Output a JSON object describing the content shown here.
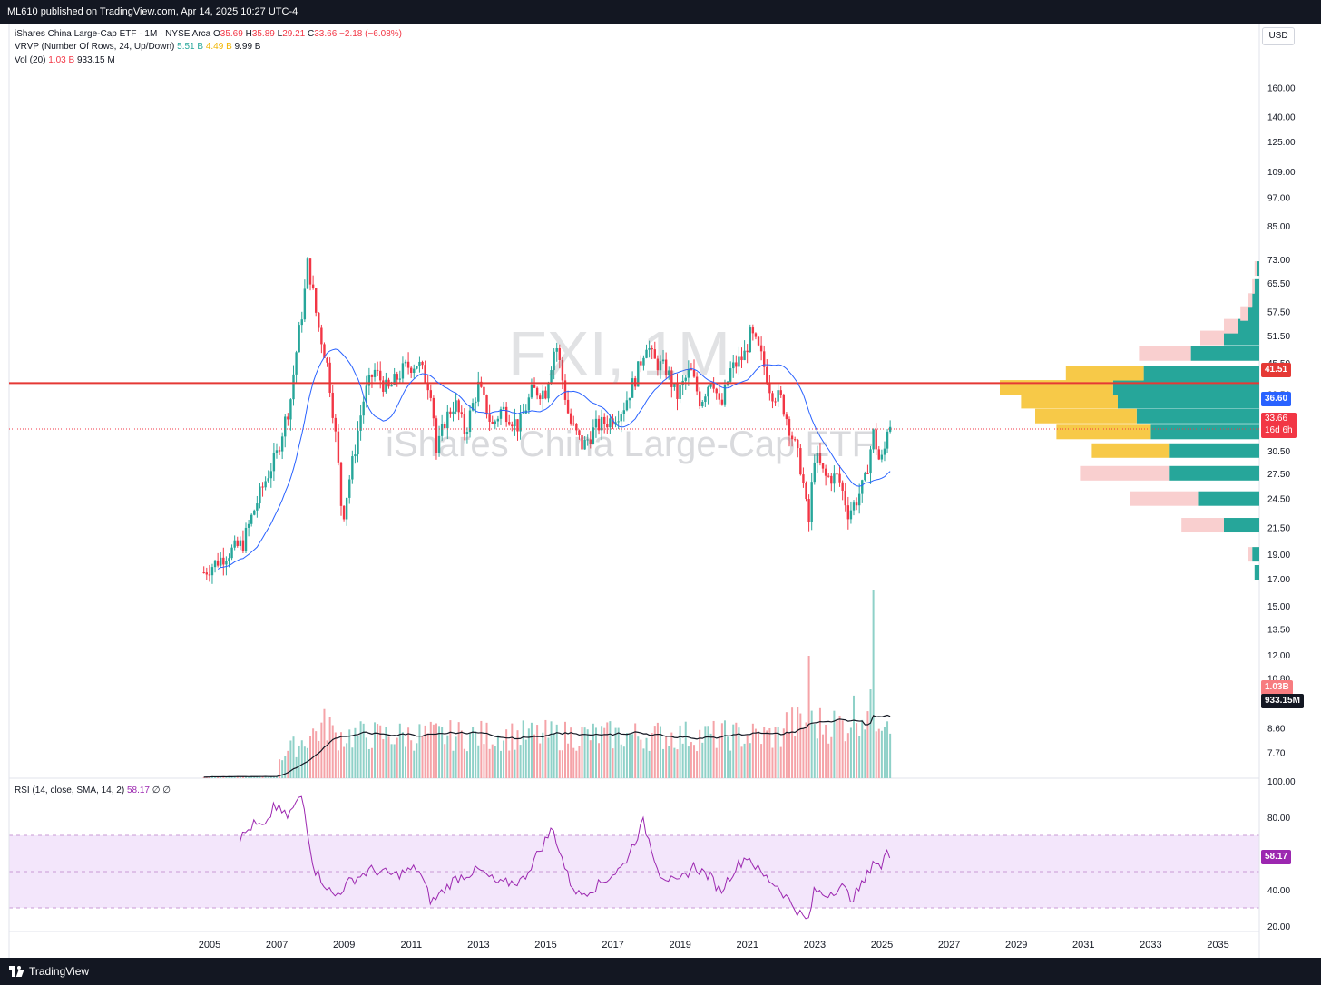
{
  "header": {
    "published": "ML610 published on TradingView.com, Apr 14, 2025 10:27 UTC-4"
  },
  "footer": {
    "brand": "TradingView"
  },
  "legend": {
    "symbol_line": "iShares China Large-Cap ETF · 1M · NYSE Arca",
    "ohlc": {
      "o_label": "O",
      "o": "35.69",
      "h_label": "H",
      "h": "35.89",
      "l_label": "L",
      "l": "29.21",
      "c_label": "C",
      "c": "33.66",
      "chg": "−2.18 (−6.08%)"
    },
    "vrvp": {
      "label": "VRVP (Number Of Rows, 24, Up/Down)",
      "up": "5.51 B",
      "down": "4.49 B",
      "total": "9.99 B"
    },
    "vol": {
      "label": "Vol (20)",
      "v": "1.03 B",
      "ma": "933.15 M"
    },
    "rsi": {
      "label": "RSI (14, close, SMA, 14, 2)",
      "value": "58.17",
      "extra": "∅ ∅"
    }
  },
  "watermark": {
    "symbol": "FXI, 1M",
    "name": "iShares China Large-Cap ETF"
  },
  "price_axis": {
    "currency": "USD",
    "ticks": [
      "160.00",
      "140.00",
      "125.00",
      "109.00",
      "97.00",
      "85.00",
      "73.00",
      "65.50",
      "57.50",
      "51.50",
      "45.50",
      "39.50",
      "35.50",
      "30.50",
      "27.50",
      "24.50",
      "21.50",
      "19.00",
      "17.00",
      "15.00",
      "13.50",
      "12.00",
      "10.80",
      "9.60",
      "8.60",
      "7.70"
    ],
    "tags": {
      "hline": "41.51",
      "ma": "36.60",
      "last": "33.66",
      "countdown": "16d 6h",
      "vol": "1.03B",
      "vol_ma": "933.15M"
    }
  },
  "rsi_axis": {
    "ticks": [
      "100.00",
      "80.00",
      "60.00",
      "40.00",
      "20.00"
    ],
    "value_tag": "58.17"
  },
  "time_axis": {
    "ticks": [
      "2005",
      "2007",
      "2009",
      "2011",
      "2013",
      "2015",
      "2017",
      "2019",
      "2021",
      "2023",
      "2025",
      "2027",
      "2029",
      "2031",
      "2033",
      "2035"
    ]
  },
  "colors": {
    "up": "#26a69a",
    "down": "#f23645",
    "ma": "#2962ff",
    "hline": "#e53935",
    "rsi": "#9c27b0",
    "vp_up": "#26a69a",
    "vp_down": "#f9cfcf",
    "vp_va_up": "#26a69a",
    "vp_va_down": "#f7c948"
  },
  "chart_data": {
    "type": "candlestick",
    "interval": "1M",
    "log_scale": true,
    "y_range": [
      7.2,
      170
    ],
    "x_range": [
      2004.5,
      2036.0
    ],
    "horizontal_line": 41.51,
    "last_close": 33.66,
    "price_keypoints": [
      [
        2004.83,
        17.5
      ],
      [
        2005.5,
        19.0
      ],
      [
        2006.0,
        20.0
      ],
      [
        2006.5,
        25.0
      ],
      [
        2007.0,
        30.0
      ],
      [
        2007.4,
        38.0
      ],
      [
        2007.8,
        60.0
      ],
      [
        2007.92,
        72.0
      ],
      [
        2008.2,
        55.0
      ],
      [
        2008.5,
        45.0
      ],
      [
        2008.8,
        30.0
      ],
      [
        2008.95,
        22.0
      ],
      [
        2009.3,
        30.0
      ],
      [
        2009.6,
        39.0
      ],
      [
        2009.9,
        44.0
      ],
      [
        2010.3,
        40.0
      ],
      [
        2010.8,
        44.5
      ],
      [
        2011.2,
        45.5
      ],
      [
        2011.6,
        40.0
      ],
      [
        2011.75,
        30.0
      ],
      [
        2012.0,
        35.0
      ],
      [
        2012.3,
        38.0
      ],
      [
        2012.6,
        33.0
      ],
      [
        2013.0,
        41.0
      ],
      [
        2013.4,
        34.0
      ],
      [
        2013.7,
        37.0
      ],
      [
        2014.2,
        34.0
      ],
      [
        2014.6,
        40.0
      ],
      [
        2015.0,
        40.0
      ],
      [
        2015.3,
        50.0
      ],
      [
        2015.5,
        42.0
      ],
      [
        2015.7,
        35.0
      ],
      [
        2016.1,
        31.0
      ],
      [
        2016.5,
        34.0
      ],
      [
        2016.9,
        35.0
      ],
      [
        2017.3,
        37.0
      ],
      [
        2017.7,
        43.0
      ],
      [
        2018.0,
        50.0
      ],
      [
        2018.2,
        46.0
      ],
      [
        2018.6,
        44.0
      ],
      [
        2018.9,
        39.0
      ],
      [
        2019.3,
        44.0
      ],
      [
        2019.6,
        38.0
      ],
      [
        2019.95,
        43.0
      ],
      [
        2020.2,
        36.5
      ],
      [
        2020.5,
        44.0
      ],
      [
        2020.9,
        47.0
      ],
      [
        2021.1,
        52.0
      ],
      [
        2021.4,
        47.0
      ],
      [
        2021.7,
        40.0
      ],
      [
        2022.0,
        38.5
      ],
      [
        2022.3,
        33.0
      ],
      [
        2022.6,
        28.0
      ],
      [
        2022.82,
        21.5
      ],
      [
        2023.0,
        30.0
      ],
      [
        2023.3,
        27.0
      ],
      [
        2023.7,
        27.0
      ],
      [
        2024.0,
        23.0
      ],
      [
        2024.2,
        24.0
      ],
      [
        2024.5,
        26.5
      ],
      [
        2024.75,
        33.0
      ],
      [
        2024.95,
        28.5
      ],
      [
        2025.1,
        31.0
      ],
      [
        2025.2,
        35.7
      ],
      [
        2025.29,
        33.66
      ]
    ],
    "moving_average": {
      "name": "SMA",
      "last": 36.6
    },
    "volume": {
      "ma20_last": "933.15M",
      "last": "1.03B"
    },
    "rsi": {
      "last": 58.17,
      "bands": [
        70,
        50,
        30
      ],
      "range": [
        16,
        102
      ],
      "keypoints": [
        [
          2005.9,
          68
        ],
        [
          2006.3,
          76
        ],
        [
          2006.7,
          74
        ],
        [
          2006.9,
          87
        ],
        [
          2007.3,
          80
        ],
        [
          2007.75,
          92
        ],
        [
          2008.1,
          52
        ],
        [
          2008.7,
          36
        ],
        [
          2009.2,
          45
        ],
        [
          2009.8,
          51
        ],
        [
          2010.5,
          48
        ],
        [
          2011.2,
          52
        ],
        [
          2011.6,
          33
        ],
        [
          2012.3,
          46
        ],
        [
          2013.0,
          51
        ],
        [
          2013.6,
          43
        ],
        [
          2014.3,
          45
        ],
        [
          2015.2,
          74
        ],
        [
          2015.7,
          45
        ],
        [
          2016.0,
          37
        ],
        [
          2016.6,
          43
        ],
        [
          2017.3,
          53
        ],
        [
          2017.9,
          77
        ],
        [
          2018.4,
          49
        ],
        [
          2018.9,
          43
        ],
        [
          2019.4,
          53
        ],
        [
          2019.9,
          47
        ],
        [
          2020.2,
          39
        ],
        [
          2020.6,
          51
        ],
        [
          2021.0,
          59
        ],
        [
          2021.4,
          49
        ],
        [
          2021.9,
          42
        ],
        [
          2022.2,
          35
        ],
        [
          2022.6,
          26
        ],
        [
          2022.8,
          22
        ],
        [
          2023.0,
          40
        ],
        [
          2023.3,
          37
        ],
        [
          2023.8,
          42
        ],
        [
          2024.1,
          35
        ],
        [
          2024.5,
          45
        ],
        [
          2024.75,
          57
        ],
        [
          2025.0,
          51
        ],
        [
          2025.15,
          63
        ],
        [
          2025.29,
          58.17
        ]
      ]
    },
    "volume_profile": {
      "rows": [
        {
          "price": 17.5,
          "up": 0.02,
          "down": 0.0
        },
        {
          "price": 19.0,
          "up": 0.03,
          "down": 0.02
        },
        {
          "price": 21.7,
          "up": 0.15,
          "down": 0.18
        },
        {
          "price": 24.5,
          "up": 0.26,
          "down": 0.29
        },
        {
          "price": 27.5,
          "up": 0.38,
          "down": 0.38
        },
        {
          "price": 30.5,
          "up": 0.38,
          "down": 0.33
        },
        {
          "price": 33.2,
          "up": 0.46,
          "down": 0.4
        },
        {
          "price": 35.7,
          "up": 0.52,
          "down": 0.43
        },
        {
          "price": 38.2,
          "up": 0.6,
          "down": 0.41
        },
        {
          "price": 40.7,
          "up": 0.62,
          "down": 0.48
        },
        {
          "price": 43.4,
          "up": 0.49,
          "down": 0.33
        },
        {
          "price": 47.5,
          "up": 0.29,
          "down": 0.22
        },
        {
          "price": 51.0,
          "up": 0.15,
          "down": 0.1
        },
        {
          "price": 53.8,
          "up": 0.09,
          "down": 0.06
        },
        {
          "price": 57.0,
          "up": 0.05,
          "down": 0.03
        },
        {
          "price": 60.5,
          "up": 0.03,
          "down": 0.02
        },
        {
          "price": 64.5,
          "up": 0.02,
          "down": 0.01
        },
        {
          "price": 70.0,
          "up": 0.01,
          "down": 0.01
        }
      ],
      "value_area": [
        30.5,
        45.0
      ]
    }
  }
}
